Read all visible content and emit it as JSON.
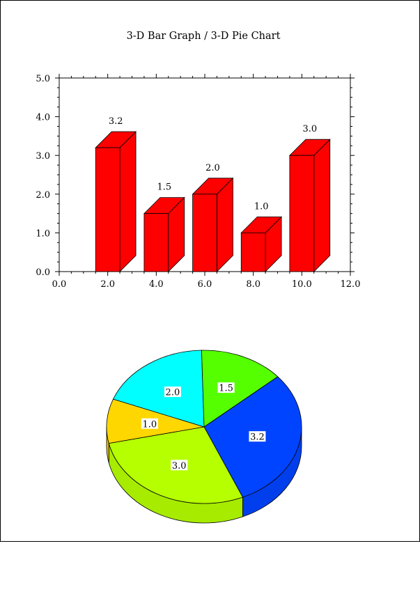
{
  "title": "3-D Bar Graph / 3-D Pie Chart",
  "colors": {
    "bar": "#ff0000",
    "pie_slices": [
      "#0044ff",
      "#b6ff00",
      "#ffd700",
      "#00ffff",
      "#55ff00"
    ],
    "frame": "#000000",
    "label_bg": "#ffffff"
  },
  "chart_data": [
    {
      "type": "bar",
      "style": "3d",
      "x": [
        2.0,
        4.0,
        6.0,
        8.0,
        10.0
      ],
      "values": [
        3.2,
        1.5,
        2.0,
        1.0,
        3.0
      ],
      "data_labels": [
        "3.2",
        "1.5",
        "2.0",
        "1.0",
        "3.0"
      ],
      "xlim": [
        0.0,
        12.0
      ],
      "ylim": [
        0.0,
        5.0
      ],
      "x_ticks": [
        "0.0",
        "2.0",
        "4.0",
        "6.0",
        "8.0",
        "10.0",
        "12.0"
      ],
      "y_ticks": [
        "0.0",
        "1.0",
        "2.0",
        "3.0",
        "4.0",
        "5.0"
      ],
      "xlabel": "",
      "ylabel": "",
      "grid": false,
      "legend": "none"
    },
    {
      "type": "pie",
      "style": "3d",
      "values": [
        3.2,
        3.0,
        1.0,
        2.0,
        1.5
      ],
      "labels": [
        "3.2",
        "3.0",
        "1.0",
        "2.0",
        "1.5"
      ],
      "legend": "none"
    }
  ]
}
